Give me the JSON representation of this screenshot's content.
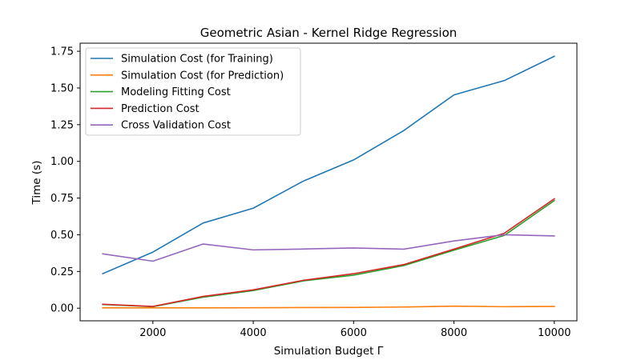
{
  "chart_data": {
    "type": "line",
    "title": "Geometric Asian - Kernel Ridge Regression",
    "xlabel": "Simulation Budget Γ",
    "ylabel": "Time (s)",
    "xlim": [
      550,
      10450
    ],
    "ylim": [
      -0.086,
      1.805
    ],
    "xticks": [
      2000,
      4000,
      6000,
      8000,
      10000
    ],
    "xtick_labels": [
      "2000",
      "4000",
      "6000",
      "8000",
      "10000"
    ],
    "yticks": [
      0.0,
      0.25,
      0.5,
      0.75,
      1.0,
      1.25,
      1.5,
      1.75
    ],
    "ytick_labels": [
      "0.00",
      "0.25",
      "0.50",
      "0.75",
      "1.00",
      "1.25",
      "1.50",
      "1.75"
    ],
    "grid": false,
    "legend_position": "top-left",
    "x": [
      1000,
      2000,
      3000,
      4000,
      5000,
      6000,
      7000,
      8000,
      9000,
      10000
    ],
    "series": [
      {
        "name": "Simulation Cost (for Training)",
        "color": "#1f77b4",
        "values": [
          0.235,
          0.382,
          0.58,
          0.681,
          0.866,
          1.01,
          1.21,
          1.453,
          1.55,
          1.716
        ]
      },
      {
        "name": "Simulation Cost (for Prediction)",
        "color": "#ff7f0e",
        "values": [
          0.002,
          0.002,
          0.002,
          0.003,
          0.004,
          0.005,
          0.008,
          0.014,
          0.01,
          0.012
        ]
      },
      {
        "name": "Modeling Fitting Cost",
        "color": "#2ca02c",
        "values": [
          0.025,
          0.01,
          0.075,
          0.12,
          0.186,
          0.225,
          0.29,
          0.395,
          0.495,
          0.733
        ]
      },
      {
        "name": "Prediction Cost",
        "color": "#d62728",
        "values": [
          0.027,
          0.012,
          0.08,
          0.125,
          0.19,
          0.235,
          0.297,
          0.402,
          0.51,
          0.745
        ]
      },
      {
        "name": "Cross Validation Cost",
        "color": "#9467bd",
        "values": [
          0.37,
          0.32,
          0.437,
          0.397,
          0.403,
          0.41,
          0.402,
          0.458,
          0.5,
          0.492
        ]
      }
    ]
  }
}
